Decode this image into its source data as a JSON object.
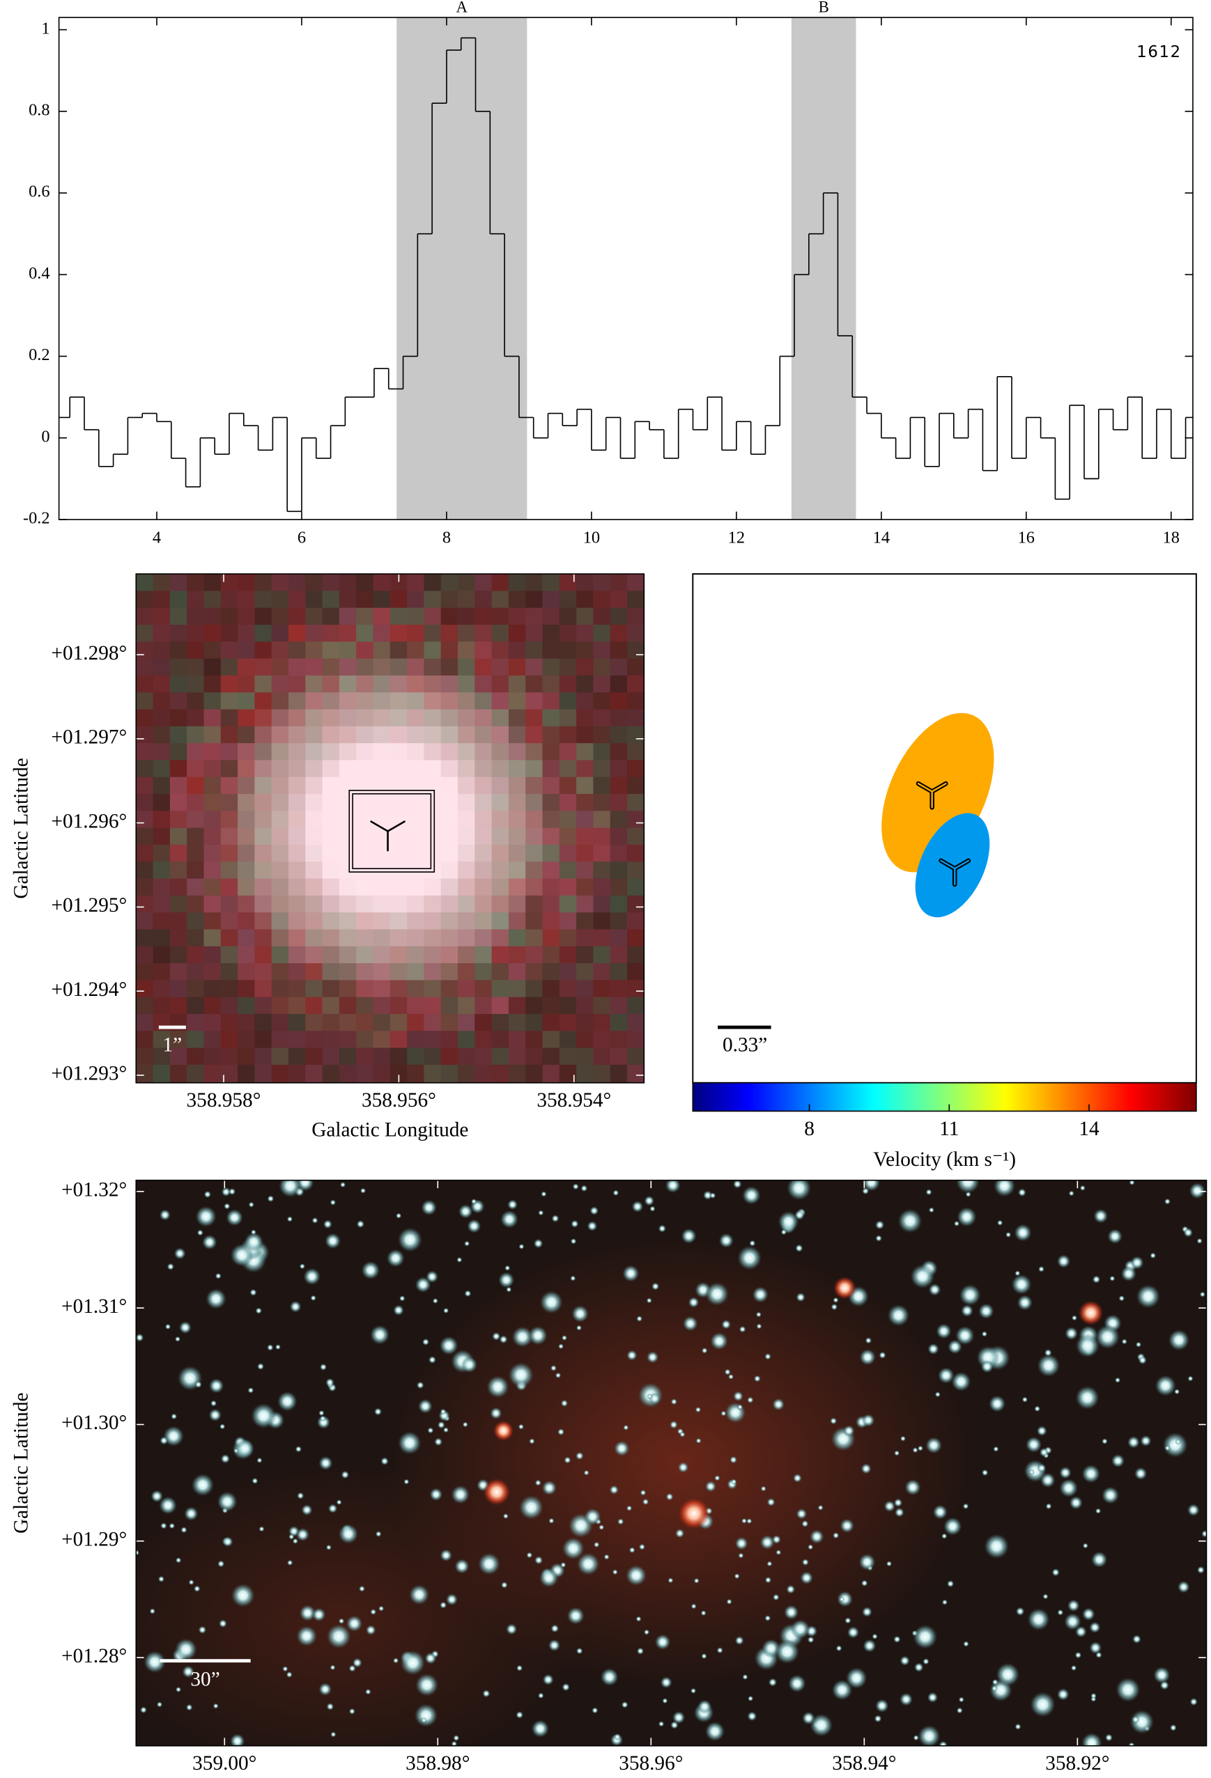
{
  "chart_data": [
    {
      "type": "line",
      "step": true,
      "color": "#000000",
      "x": [
        2.7,
        2.9,
        3.1,
        3.3,
        3.5,
        3.7,
        3.9,
        4.1,
        4.3,
        4.5,
        4.7,
        4.9,
        5.1,
        5.3,
        5.5,
        5.7,
        5.9,
        6.1,
        6.3,
        6.5,
        6.7,
        6.9,
        7.1,
        7.3,
        7.5,
        7.7,
        7.9,
        8.1,
        8.3,
        8.5,
        8.7,
        8.9,
        9.1,
        9.3,
        9.5,
        9.7,
        9.9,
        10.1,
        10.3,
        10.5,
        10.7,
        10.9,
        11.1,
        11.3,
        11.5,
        11.7,
        11.9,
        12.1,
        12.3,
        12.5,
        12.7,
        12.9,
        13.1,
        13.3,
        13.5,
        13.7,
        13.9,
        14.1,
        14.3,
        14.5,
        14.7,
        14.9,
        15.1,
        15.3,
        15.5,
        15.7,
        15.9,
        16.1,
        16.3,
        16.5,
        16.7,
        16.9,
        17.1,
        17.3,
        17.5,
        17.7,
        17.9,
        18.1,
        18.3
      ],
      "values": [
        0.05,
        0.1,
        0.02,
        -0.07,
        -0.04,
        0.05,
        0.06,
        0.04,
        -0.05,
        -0.12,
        0.0,
        -0.04,
        0.06,
        0.03,
        -0.03,
        0.05,
        -0.18,
        0.0,
        -0.05,
        0.03,
        0.1,
        0.1,
        0.17,
        0.12,
        0.2,
        0.5,
        0.82,
        0.95,
        0.98,
        0.8,
        0.5,
        0.2,
        0.05,
        0.0,
        0.06,
        0.03,
        0.07,
        -0.03,
        0.05,
        -0.05,
        0.04,
        0.02,
        -0.05,
        0.07,
        0.02,
        0.1,
        -0.03,
        0.04,
        -0.04,
        0.03,
        0.2,
        0.4,
        0.5,
        0.6,
        0.25,
        0.1,
        0.06,
        0.0,
        -0.05,
        0.05,
        -0.07,
        0.06,
        0.0,
        0.07,
        -0.08,
        0.15,
        -0.05,
        0.05,
        0.0,
        -0.15,
        0.08,
        -0.1,
        0.07,
        0.02,
        0.1,
        -0.05,
        0.07,
        -0.05,
        0.05
      ],
      "xlim": [
        2.65,
        18.3
      ],
      "ylim": [
        -0.2,
        1.03
      ],
      "xticks": [
        4,
        6,
        8,
        10,
        12,
        14,
        16,
        18
      ],
      "yticks": [
        -0.2,
        0,
        0.2,
        0.4,
        0.6,
        0.8,
        1
      ],
      "annotation": "1612",
      "region_color": "#c8c8c8",
      "regions": [
        {
          "label": "A",
          "range": [
            7.31,
            9.11
          ]
        },
        {
          "label": "B",
          "range": [
            12.76,
            13.65
          ]
        }
      ]
    },
    {
      "type": "image",
      "xlabel": "Galactic Longitude",
      "ylabel": "Galactic Latitude",
      "xlim": [
        358.959,
        358.9532
      ],
      "ylim": [
        1.29291,
        1.29896
      ],
      "xticks": [
        {
          "value": 358.958,
          "label": "358.958°"
        },
        {
          "value": 358.956,
          "label": "358.956°"
        },
        {
          "value": 358.954,
          "label": "358.954°"
        }
      ],
      "yticks": [
        {
          "value": 1.293,
          "label": "+01.293°"
        },
        {
          "value": 1.294,
          "label": "+01.294°"
        },
        {
          "value": 1.295,
          "label": "+01.295°"
        },
        {
          "value": 1.296,
          "label": "+01.296°"
        },
        {
          "value": 1.297,
          "label": "+01.297°"
        },
        {
          "value": 1.298,
          "label": "+01.298°"
        }
      ],
      "scale_bar": "1”"
    },
    {
      "type": "ellipse",
      "ellipse_colors": [
        "#ffaa00",
        "#0099ee"
      ],
      "scale_bar": "0.33”",
      "colorbar": {
        "label": "Velocity (km s⁻¹)",
        "lim": [
          5.5,
          16.3
        ],
        "ticks": [
          8,
          11,
          14
        ]
      }
    },
    {
      "type": "image",
      "xlabel": "Galactic Longitude",
      "ylabel": "Galactic Latitude",
      "xlim": [
        359.0083,
        358.9079
      ],
      "ylim": [
        1.27243,
        1.32096
      ],
      "xticks": [
        {
          "value": 359.0,
          "label": "359.00°"
        },
        {
          "value": 358.98,
          "label": "358.98°"
        },
        {
          "value": 358.96,
          "label": "358.96°"
        },
        {
          "value": 358.94,
          "label": "358.94°"
        },
        {
          "value": 358.92,
          "label": "358.92°"
        }
      ],
      "yticks": [
        {
          "value": 1.28,
          "label": "+01.28°"
        },
        {
          "value": 1.29,
          "label": "+01.29°"
        },
        {
          "value": 1.3,
          "label": "+01.30°"
        },
        {
          "value": 1.31,
          "label": "+01.31°"
        },
        {
          "value": 1.32,
          "label": "+01.32°"
        }
      ],
      "scale_bar": "30”"
    }
  ]
}
